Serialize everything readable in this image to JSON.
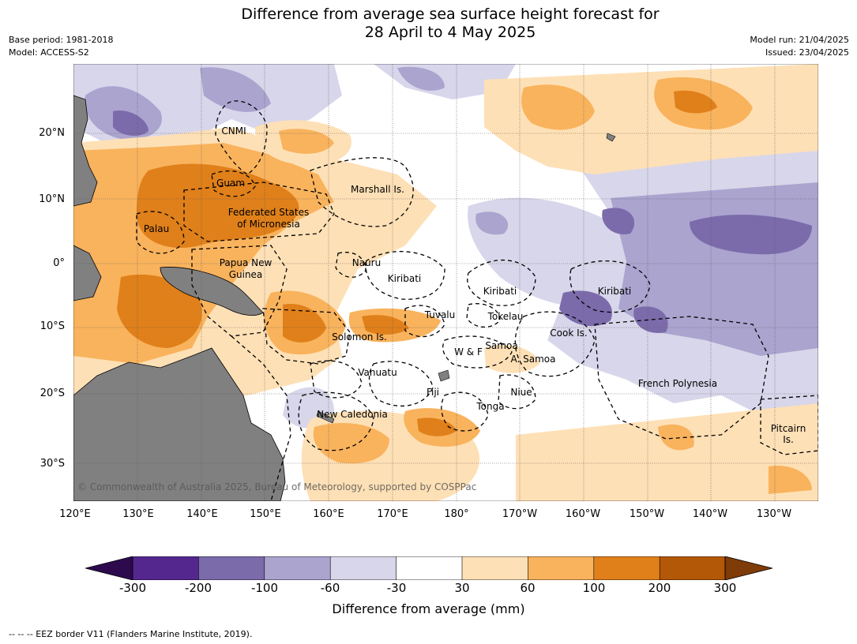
{
  "title_line1": "Difference from average sea surface height forecast for",
  "title_line2": "28 April to 4 May 2025",
  "base_period": "Base period: 1981-2018",
  "model": "Model: ACCESS-S2",
  "model_run": "Model run: 21/04/2025",
  "issued": "Issued: 23/04/2025",
  "lat_labels": [
    "20°N",
    "10°N",
    "0°",
    "10°S",
    "20°S",
    "30°S"
  ],
  "lon_labels": [
    "120°E",
    "130°E",
    "140°E",
    "150°E",
    "160°E",
    "170°E",
    "180°",
    "170°W",
    "160°W",
    "150°W",
    "140°W",
    "130°W"
  ],
  "places": [
    "CNMI",
    "Guam",
    "Marshall Is.",
    "Federated States",
    "of Micronesia",
    "Palau",
    "Papua New",
    "Guinea",
    "Nauru",
    "Kiribati",
    "Kiribati",
    "Kiribati",
    "Tuvalu",
    "Tokelau",
    "Cook Is.",
    "Solomon Is.",
    "W & F",
    "Samoa",
    "A. Samoa",
    "Vanuatu",
    "Fiji",
    "Niue",
    "French Polynesia",
    "Tonga",
    "New Caledonia",
    "Pitcairn",
    "Is."
  ],
  "copyright": "© Commonwealth of Australia 2025, Bureau of Meteorology, supported by COSPPac",
  "colorbar": {
    "ticks": [
      "-300",
      "-200",
      "-100",
      "-60",
      "-30",
      "30",
      "60",
      "100",
      "200",
      "300"
    ],
    "label": "Difference from average (mm)",
    "colors": [
      "#2d0a4e",
      "#54278f",
      "#7c6bab",
      "#aba4cf",
      "#d8d6ea",
      "#ffffff",
      "#fee0b6",
      "#f9b35d",
      "#e0801a",
      "#b35806",
      "#7f3b08"
    ]
  },
  "footnote": "-- -- -- EEZ border V11 (Flanders Marine Institute, 2019).",
  "land_color": "#808080"
}
